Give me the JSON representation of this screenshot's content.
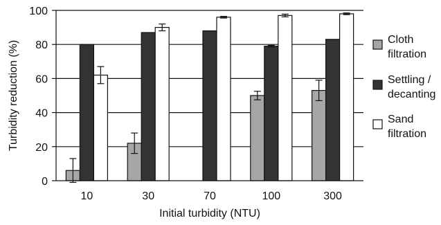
{
  "chart_data": {
    "type": "bar",
    "title": "",
    "xlabel": "Initial turbidity (NTU)",
    "ylabel": "Turbidity reduction (%)",
    "ylim": [
      0,
      100
    ],
    "yticks": [
      0,
      20,
      40,
      60,
      80,
      100
    ],
    "grid": true,
    "legend_position": "right",
    "categories": [
      "10",
      "30",
      "70",
      "100",
      "300"
    ],
    "series": [
      {
        "name_lines": [
          "Cloth",
          "filtration"
        ],
        "color": "#a6a6a6",
        "values": [
          6,
          22,
          null,
          50,
          53
        ],
        "errors": [
          7,
          6,
          null,
          2.5,
          6
        ]
      },
      {
        "name_lines": [
          "Settling /",
          "decanting"
        ],
        "color": "#333333",
        "values": [
          80,
          87,
          88,
          79,
          83
        ],
        "errors": [
          0,
          0,
          0,
          0.5,
          0
        ]
      },
      {
        "name_lines": [
          "Sand",
          "filtration"
        ],
        "color": "#ffffff",
        "values": [
          62,
          90,
          96,
          97,
          98
        ],
        "errors": [
          5,
          2,
          0.5,
          0.8,
          0.5
        ]
      }
    ]
  }
}
